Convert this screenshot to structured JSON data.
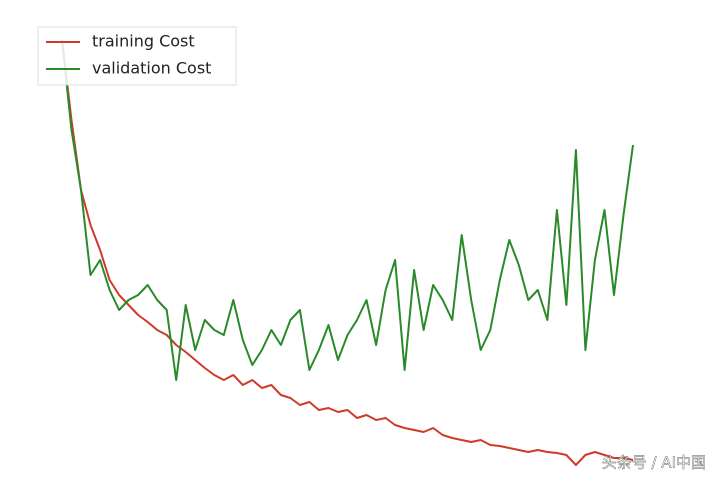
{
  "chart_data": {
    "type": "line",
    "series": [
      {
        "name": "training Cost",
        "color": "#d03a2a",
        "values": [
          440,
          360,
          290,
          255,
          230,
          200,
          185,
          175,
          165,
          158,
          150,
          145,
          135,
          128,
          120,
          112,
          105,
          100,
          105,
          95,
          100,
          92,
          95,
          85,
          82,
          75,
          78,
          70,
          72,
          68,
          70,
          62,
          65,
          60,
          62,
          55,
          52,
          50,
          48,
          52,
          45,
          42,
          40,
          38,
          40,
          35,
          34,
          32,
          30,
          28,
          30,
          28,
          27,
          25,
          15,
          25,
          28,
          25,
          22,
          22,
          20
        ]
      },
      {
        "name": "validation Cost",
        "color": "#2a8a2a",
        "values": [
          440,
          350,
          290,
          205,
          220,
          190,
          170,
          180,
          185,
          195,
          180,
          170,
          100,
          175,
          130,
          160,
          150,
          145,
          180,
          140,
          115,
          130,
          150,
          135,
          160,
          170,
          110,
          130,
          155,
          120,
          145,
          160,
          180,
          135,
          190,
          220,
          110,
          210,
          150,
          195,
          180,
          160,
          245,
          180,
          130,
          150,
          200,
          240,
          215,
          180,
          190,
          160,
          270,
          175,
          330,
          130,
          220,
          270,
          185,
          265,
          335
        ]
      }
    ],
    "ylim": [
      10,
      440
    ],
    "legend": "upper left"
  },
  "watermark": "头条号 / AI中国"
}
